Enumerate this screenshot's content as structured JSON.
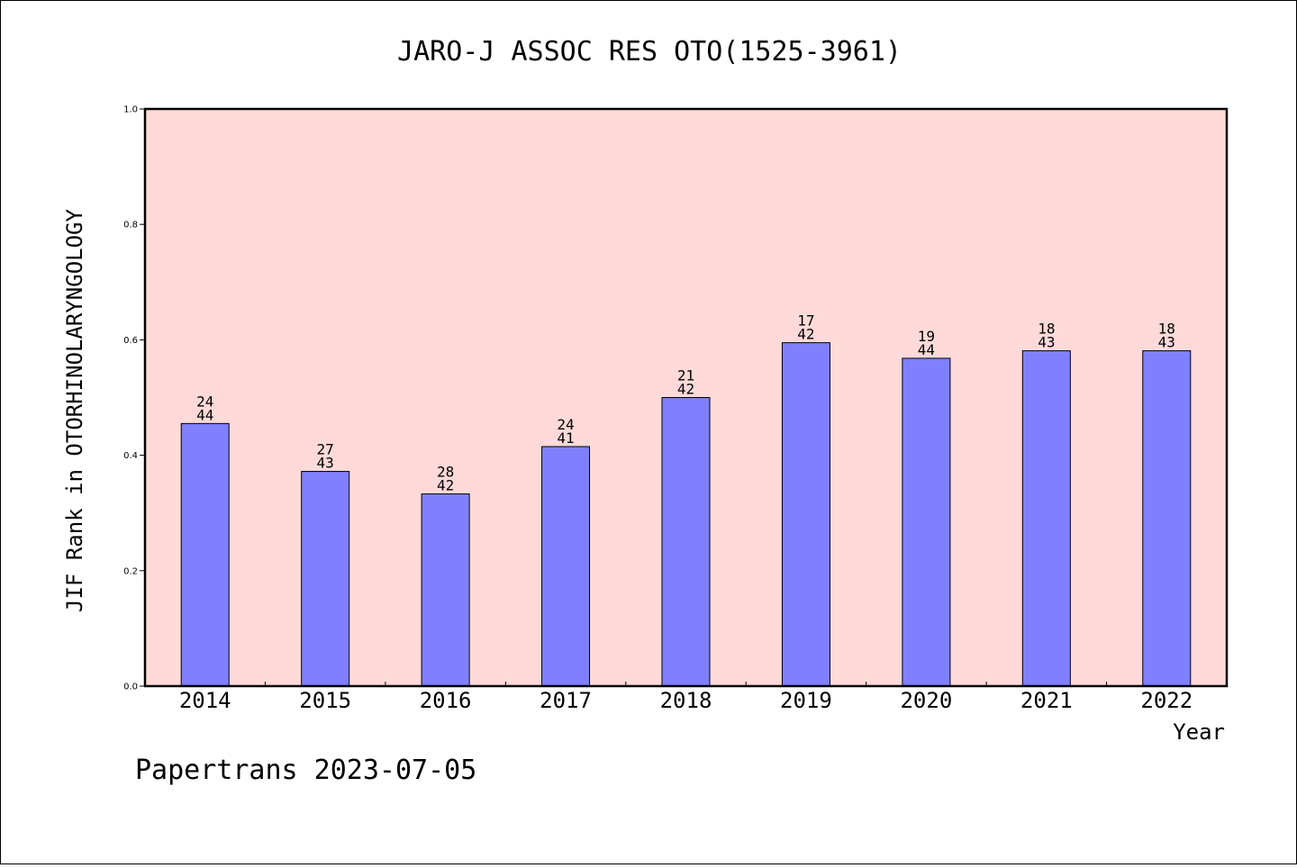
{
  "chart_data": {
    "type": "bar",
    "title": "JARO-J ASSOC RES OTO(1525-3961)",
    "xlabel": "Year",
    "ylabel": "JIF Rank in OTORHINOLARYNGOLOGY",
    "ylim": [
      0,
      1.0
    ],
    "yticks": [
      "0.0",
      "0.2",
      "0.4",
      "0.6",
      "0.8",
      "1.0"
    ],
    "categories": [
      "2014",
      "2015",
      "2016",
      "2017",
      "2018",
      "2019",
      "2020",
      "2021",
      "2022"
    ],
    "values": [
      0.455,
      0.372,
      0.333,
      0.415,
      0.5,
      0.595,
      0.568,
      0.581,
      0.581
    ],
    "rank": [
      "24",
      "27",
      "28",
      "24",
      "21",
      "17",
      "19",
      "18",
      "18"
    ],
    "total": [
      "44",
      "43",
      "42",
      "41",
      "42",
      "42",
      "44",
      "43",
      "43"
    ],
    "grid": false,
    "colors": {
      "plot_bg": "#ffdad8",
      "bar": "#8080ff"
    }
  },
  "footer": "Papertrans 2023-07-05"
}
